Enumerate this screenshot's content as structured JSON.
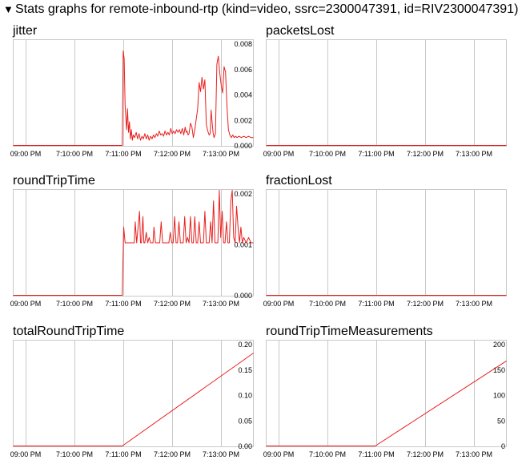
{
  "header": {
    "toggle_glyph": "▼",
    "title": "Stats graphs for remote-inbound-rtp (kind=video, ssrc=2300047391, id=RIV2300047391)"
  },
  "colors": {
    "line": "#e8201e",
    "grid": "#c8c8c8",
    "frame": "#c8c8c8"
  },
  "x_ticks": [
    "09:00 PM",
    "7:10:00 PM",
    "7:11:00 PM",
    "7:12:00 PM",
    "7:13:00 PM"
  ],
  "graphs": [
    {
      "id": "jitter",
      "title": "jitter",
      "chart_data": {
        "type": "line",
        "ylim": [
          0,
          0.008
        ],
        "y_ticks": [
          "0.008",
          "0.006",
          "0.004",
          "0.002",
          "0.000"
        ],
        "x": [
          0,
          2.27,
          2.29,
          2.31,
          2.33,
          2.36,
          2.38,
          2.4,
          2.42,
          2.44,
          2.46,
          2.48,
          2.5,
          2.53,
          2.56,
          2.59,
          2.62,
          2.65,
          2.68,
          2.71,
          2.74,
          2.77,
          2.8,
          2.83,
          2.86,
          2.89,
          2.92,
          2.95,
          2.98,
          3.01,
          3.04,
          3.07,
          3.1,
          3.13,
          3.16,
          3.19,
          3.22,
          3.25,
          3.28,
          3.31,
          3.34,
          3.37,
          3.4,
          3.43,
          3.46,
          3.49,
          3.52,
          3.55,
          3.58,
          3.6,
          3.62,
          3.64,
          3.66,
          3.69,
          3.72,
          3.75,
          3.78,
          3.81,
          3.84,
          3.87,
          3.9,
          3.93,
          3.96,
          3.99,
          4.02,
          4.05,
          4.08,
          4.1,
          4.12,
          4.14,
          4.16,
          4.18,
          4.21,
          4.24,
          4.27,
          4.3,
          4.33,
          4.36,
          4.39,
          4.42,
          4.45,
          4.48,
          4.51,
          4.54,
          4.57,
          4.6,
          4.63,
          4.66,
          4.7,
          4.75,
          4.8,
          4.85,
          4.9,
          4.95,
          5.0
        ],
        "y": [
          0,
          0,
          0.0072,
          0.0066,
          0.003,
          0.0012,
          0.0028,
          0.001,
          0.0018,
          0.0005,
          0.0012,
          0.0004,
          0.0008,
          0.0006,
          0.001,
          0.0005,
          0.0009,
          0.0004,
          0.0007,
          0.0005,
          0.0009,
          0.0005,
          0.0008,
          0.0004,
          0.0007,
          0.0005,
          0.0008,
          0.0006,
          0.0009,
          0.0007,
          0.0011,
          0.0008,
          0.0009,
          0.0007,
          0.0011,
          0.0008,
          0.001,
          0.0008,
          0.0013,
          0.0009,
          0.0011,
          0.0009,
          0.0012,
          0.001,
          0.0012,
          0.0009,
          0.0013,
          0.0008,
          0.0014,
          0.001,
          0.0011,
          0.0008,
          0.0009,
          0.0017,
          0.0014,
          0.0006,
          0.0012,
          0.002,
          0.0028,
          0.0048,
          0.0041,
          0.0052,
          0.0043,
          0.005,
          0.0016,
          0.0011,
          0.0008,
          0.0009,
          0.0027,
          0.0018,
          0.001,
          0.0006,
          0.0009,
          0.0062,
          0.0068,
          0.0055,
          0.0046,
          0.004,
          0.006,
          0.0056,
          0.003,
          0.0012,
          0.0008,
          0.0006,
          0.0008,
          0.0006,
          0.0007,
          0.0006,
          0.0007,
          0.0006,
          0.0007,
          0.0006,
          0.0007,
          0.0006,
          0.0006
        ]
      }
    },
    {
      "id": "packetsLost",
      "title": "packetsLost",
      "chart_data": {
        "type": "line",
        "ylim": [
          0,
          1
        ],
        "y_ticks": [],
        "x": [
          0,
          5
        ],
        "y": [
          0,
          0
        ]
      }
    },
    {
      "id": "roundTripTime",
      "title": "roundTripTime",
      "chart_data": {
        "type": "line",
        "ylim": [
          0,
          0.002
        ],
        "y_ticks": [
          "0.002",
          "0.001",
          "0.000"
        ],
        "x": [
          0,
          2.27,
          2.3,
          2.33,
          2.36,
          2.4,
          2.44,
          2.47,
          2.5,
          2.52,
          2.54,
          2.57,
          2.6,
          2.63,
          2.65,
          2.67,
          2.7,
          2.72,
          2.74,
          2.77,
          2.8,
          2.83,
          2.86,
          2.89,
          2.91,
          2.93,
          2.96,
          2.99,
          3.02,
          3.05,
          3.08,
          3.11,
          3.14,
          3.17,
          3.19,
          3.21,
          3.24,
          3.27,
          3.3,
          3.33,
          3.36,
          3.39,
          3.42,
          3.45,
          3.48,
          3.51,
          3.54,
          3.57,
          3.6,
          3.63,
          3.66,
          3.69,
          3.72,
          3.75,
          3.78,
          3.81,
          3.84,
          3.87,
          3.9,
          3.93,
          3.96,
          3.99,
          4.02,
          4.05,
          4.08,
          4.11,
          4.14,
          4.17,
          4.2,
          4.23,
          4.26,
          4.29,
          4.32,
          4.35,
          4.38,
          4.41,
          4.44,
          4.47,
          4.5,
          4.53,
          4.56,
          4.59,
          4.62,
          4.65,
          4.68,
          4.71,
          4.74,
          4.77,
          4.8,
          4.85,
          4.9,
          4.95,
          5.0
        ],
        "y": [
          0,
          0,
          0.0013,
          0.001,
          0.001,
          0.001,
          0.001,
          0.001,
          0.001,
          0.001,
          0.0014,
          0.001,
          0.0013,
          0.0016,
          0.001,
          0.001,
          0.0015,
          0.001,
          0.001,
          0.0012,
          0.001,
          0.0011,
          0.001,
          0.001,
          0.001,
          0.0013,
          0.001,
          0.001,
          0.001,
          0.001,
          0.0014,
          0.001,
          0.001,
          0.001,
          0.001,
          0.001,
          0.001,
          0.0012,
          0.001,
          0.001,
          0.0015,
          0.001,
          0.001,
          0.0014,
          0.001,
          0.001,
          0.001,
          0.0015,
          0.001,
          0.0011,
          0.001,
          0.0015,
          0.001,
          0.001,
          0.0015,
          0.001,
          0.001,
          0.0014,
          0.001,
          0.001,
          0.001,
          0.0016,
          0.001,
          0.001,
          0.001,
          0.0014,
          0.001,
          0.0018,
          0.001,
          0.001,
          0.001,
          0.002,
          0.0011,
          0.0016,
          0.001,
          0.001,
          0.0014,
          0.001,
          0.001,
          0.0018,
          0.002,
          0.0011,
          0.001,
          0.0017,
          0.0013,
          0.001,
          0.0013,
          0.001,
          0.0011,
          0.001,
          0.0011,
          0.001,
          0.001
        ]
      }
    },
    {
      "id": "fractionLost",
      "title": "fractionLost",
      "chart_data": {
        "type": "line",
        "ylim": [
          0,
          1
        ],
        "y_ticks": [],
        "x": [
          0,
          5
        ],
        "y": [
          0,
          0
        ]
      }
    },
    {
      "id": "totalRoundTripTime",
      "title": "totalRoundTripTime",
      "chart_data": {
        "type": "line",
        "ylim": [
          0,
          0.2
        ],
        "y_ticks": [
          "0.20",
          "0.15",
          "0.10",
          "0.05",
          "0.00"
        ],
        "x": [
          0,
          2.27,
          5.0
        ],
        "y": [
          0,
          0,
          0.177
        ]
      }
    },
    {
      "id": "roundTripTimeMeasurements",
      "title": "roundTripTimeMeasurements",
      "chart_data": {
        "type": "line",
        "ylim": [
          0,
          200
        ],
        "y_ticks": [
          "200",
          "150",
          "100",
          "50",
          "0"
        ],
        "x": [
          0,
          2.27,
          5.0
        ],
        "y": [
          0,
          0,
          162
        ]
      }
    }
  ]
}
